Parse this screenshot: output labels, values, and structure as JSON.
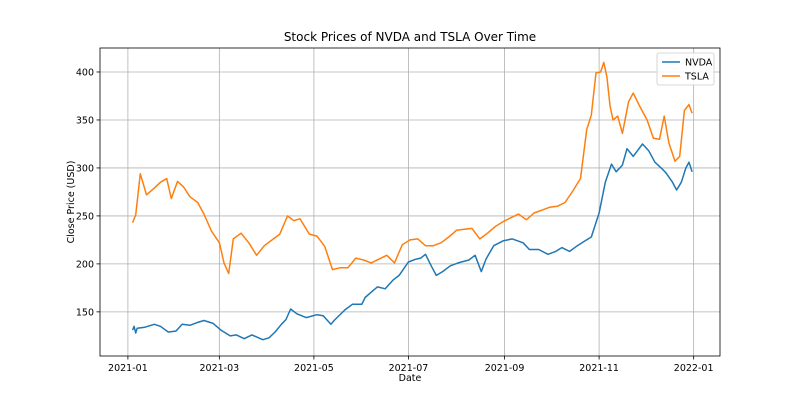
{
  "chart_data": {
    "type": "line",
    "title": "Stock Prices of NVDA and TSLA Over Time",
    "xlabel": "Date",
    "ylabel": "Close Price (USD)",
    "xlim": [
      "2020-12-14",
      "2022-01-18"
    ],
    "ylim": [
      104,
      425
    ],
    "xticks": [
      {
        "date": "2021-01-01",
        "label": "2021-01"
      },
      {
        "date": "2021-03-01",
        "label": "2021-03"
      },
      {
        "date": "2021-05-01",
        "label": "2021-05"
      },
      {
        "date": "2021-07-01",
        "label": "2021-07"
      },
      {
        "date": "2021-09-01",
        "label": "2021-09"
      },
      {
        "date": "2021-11-01",
        "label": "2021-11"
      },
      {
        "date": "2022-01-01",
        "label": "2022-01"
      }
    ],
    "yticks": [
      150,
      200,
      250,
      300,
      350,
      400
    ],
    "grid": true,
    "legend_position": "top-right",
    "series": [
      {
        "name": "NVDA",
        "color": "#1f77b4",
        "points": [
          [
            "2021-01-04",
            131
          ],
          [
            "2021-01-05",
            135
          ],
          [
            "2021-01-06",
            128
          ],
          [
            "2021-01-07",
            133
          ],
          [
            "2021-01-12",
            134
          ],
          [
            "2021-01-18",
            137
          ],
          [
            "2021-01-22",
            135
          ],
          [
            "2021-01-27",
            129
          ],
          [
            "2021-02-01",
            130
          ],
          [
            "2021-02-05",
            137
          ],
          [
            "2021-02-10",
            136
          ],
          [
            "2021-02-15",
            139
          ],
          [
            "2021-02-19",
            141
          ],
          [
            "2021-02-25",
            138
          ],
          [
            "2021-03-02",
            131
          ],
          [
            "2021-03-08",
            125
          ],
          [
            "2021-03-12",
            126
          ],
          [
            "2021-03-17",
            122
          ],
          [
            "2021-03-22",
            126
          ],
          [
            "2021-03-29",
            121
          ],
          [
            "2021-04-02",
            123
          ],
          [
            "2021-04-06",
            129
          ],
          [
            "2021-04-10",
            137
          ],
          [
            "2021-04-13",
            142
          ],
          [
            "2021-04-16",
            153
          ],
          [
            "2021-04-20",
            148
          ],
          [
            "2021-04-26",
            144
          ],
          [
            "2021-05-03",
            147
          ],
          [
            "2021-05-07",
            146
          ],
          [
            "2021-05-12",
            137
          ],
          [
            "2021-05-14",
            141
          ],
          [
            "2021-05-21",
            152
          ],
          [
            "2021-05-26",
            158
          ],
          [
            "2021-06-01",
            158
          ],
          [
            "2021-06-03",
            165
          ],
          [
            "2021-06-08",
            172
          ],
          [
            "2021-06-11",
            176
          ],
          [
            "2021-06-16",
            174
          ],
          [
            "2021-06-21",
            183
          ],
          [
            "2021-06-25",
            188
          ],
          [
            "2021-07-01",
            202
          ],
          [
            "2021-07-06",
            205
          ],
          [
            "2021-07-09",
            206
          ],
          [
            "2021-07-12",
            210
          ],
          [
            "2021-07-16",
            197
          ],
          [
            "2021-07-19",
            188
          ],
          [
            "2021-07-23",
            192
          ],
          [
            "2021-07-28",
            198
          ],
          [
            "2021-08-02",
            201
          ],
          [
            "2021-08-09",
            204
          ],
          [
            "2021-08-13",
            209
          ],
          [
            "2021-08-17",
            192
          ],
          [
            "2021-08-20",
            205
          ],
          [
            "2021-08-25",
            219
          ],
          [
            "2021-08-31",
            224
          ],
          [
            "2021-09-06",
            226
          ],
          [
            "2021-09-13",
            222
          ],
          [
            "2021-09-17",
            215
          ],
          [
            "2021-09-23",
            215
          ],
          [
            "2021-09-29",
            210
          ],
          [
            "2021-10-04",
            213
          ],
          [
            "2021-10-08",
            217
          ],
          [
            "2021-10-13",
            213
          ],
          [
            "2021-10-18",
            219
          ],
          [
            "2021-10-22",
            223
          ],
          [
            "2021-10-27",
            228
          ],
          [
            "2021-11-01",
            253
          ],
          [
            "2021-11-05",
            285
          ],
          [
            "2021-11-09",
            304
          ],
          [
            "2021-11-12",
            296
          ],
          [
            "2021-11-16",
            303
          ],
          [
            "2021-11-19",
            320
          ],
          [
            "2021-11-23",
            312
          ],
          [
            "2021-11-29",
            325
          ],
          [
            "2021-12-03",
            318
          ],
          [
            "2021-12-07",
            306
          ],
          [
            "2021-12-11",
            300
          ],
          [
            "2021-12-14",
            295
          ],
          [
            "2021-12-18",
            286
          ],
          [
            "2021-12-21",
            277
          ],
          [
            "2021-12-24",
            285
          ],
          [
            "2021-12-27",
            300
          ],
          [
            "2021-12-29",
            306
          ],
          [
            "2021-12-31",
            296
          ]
        ]
      },
      {
        "name": "TSLA",
        "color": "#ff7f0e",
        "points": [
          [
            "2021-01-04",
            243
          ],
          [
            "2021-01-06",
            251
          ],
          [
            "2021-01-09",
            294
          ],
          [
            "2021-01-13",
            272
          ],
          [
            "2021-01-18",
            279
          ],
          [
            "2021-01-22",
            285
          ],
          [
            "2021-01-26",
            289
          ],
          [
            "2021-01-29",
            268
          ],
          [
            "2021-02-02",
            286
          ],
          [
            "2021-02-06",
            280
          ],
          [
            "2021-02-10",
            270
          ],
          [
            "2021-02-15",
            264
          ],
          [
            "2021-02-19",
            252
          ],
          [
            "2021-02-24",
            234
          ],
          [
            "2021-03-01",
            222
          ],
          [
            "2021-03-04",
            201
          ],
          [
            "2021-03-07",
            190
          ],
          [
            "2021-03-10",
            226
          ],
          [
            "2021-03-15",
            232
          ],
          [
            "2021-03-20",
            222
          ],
          [
            "2021-03-25",
            209
          ],
          [
            "2021-03-30",
            219
          ],
          [
            "2021-04-04",
            225
          ],
          [
            "2021-04-09",
            231
          ],
          [
            "2021-04-14",
            250
          ],
          [
            "2021-04-18",
            245
          ],
          [
            "2021-04-22",
            247
          ],
          [
            "2021-04-28",
            231
          ],
          [
            "2021-05-03",
            229
          ],
          [
            "2021-05-08",
            218
          ],
          [
            "2021-05-13",
            194
          ],
          [
            "2021-05-18",
            196
          ],
          [
            "2021-05-23",
            196
          ],
          [
            "2021-05-28",
            206
          ],
          [
            "2021-06-02",
            204
          ],
          [
            "2021-06-07",
            201
          ],
          [
            "2021-06-12",
            205
          ],
          [
            "2021-06-17",
            209
          ],
          [
            "2021-06-22",
            201
          ],
          [
            "2021-06-27",
            220
          ],
          [
            "2021-07-02",
            225
          ],
          [
            "2021-07-07",
            226
          ],
          [
            "2021-07-12",
            219
          ],
          [
            "2021-07-17",
            219
          ],
          [
            "2021-07-22",
            222
          ],
          [
            "2021-07-27",
            228
          ],
          [
            "2021-08-01",
            235
          ],
          [
            "2021-08-06",
            236
          ],
          [
            "2021-08-11",
            237
          ],
          [
            "2021-08-16",
            226
          ],
          [
            "2021-08-21",
            232
          ],
          [
            "2021-08-26",
            239
          ],
          [
            "2021-08-31",
            244
          ],
          [
            "2021-09-05",
            248
          ],
          [
            "2021-09-10",
            252
          ],
          [
            "2021-09-15",
            246
          ],
          [
            "2021-09-20",
            253
          ],
          [
            "2021-09-25",
            256
          ],
          [
            "2021-09-30",
            259
          ],
          [
            "2021-10-05",
            260
          ],
          [
            "2021-10-10",
            264
          ],
          [
            "2021-10-15",
            276
          ],
          [
            "2021-10-20",
            289
          ],
          [
            "2021-10-24",
            340
          ],
          [
            "2021-10-27",
            355
          ],
          [
            "2021-10-30",
            399
          ],
          [
            "2021-11-02",
            400
          ],
          [
            "2021-11-04",
            410
          ],
          [
            "2021-11-06",
            395
          ],
          [
            "2021-11-08",
            365
          ],
          [
            "2021-11-10",
            350
          ],
          [
            "2021-11-13",
            354
          ],
          [
            "2021-11-16",
            336
          ],
          [
            "2021-11-20",
            369
          ],
          [
            "2021-11-23",
            378
          ],
          [
            "2021-11-27",
            365
          ],
          [
            "2021-12-02",
            350
          ],
          [
            "2021-12-06",
            331
          ],
          [
            "2021-12-10",
            330
          ],
          [
            "2021-12-13",
            354
          ],
          [
            "2021-12-16",
            326
          ],
          [
            "2021-12-20",
            307
          ],
          [
            "2021-12-23",
            312
          ],
          [
            "2021-12-26",
            360
          ],
          [
            "2021-12-29",
            366
          ],
          [
            "2021-12-31",
            357
          ]
        ]
      }
    ]
  }
}
